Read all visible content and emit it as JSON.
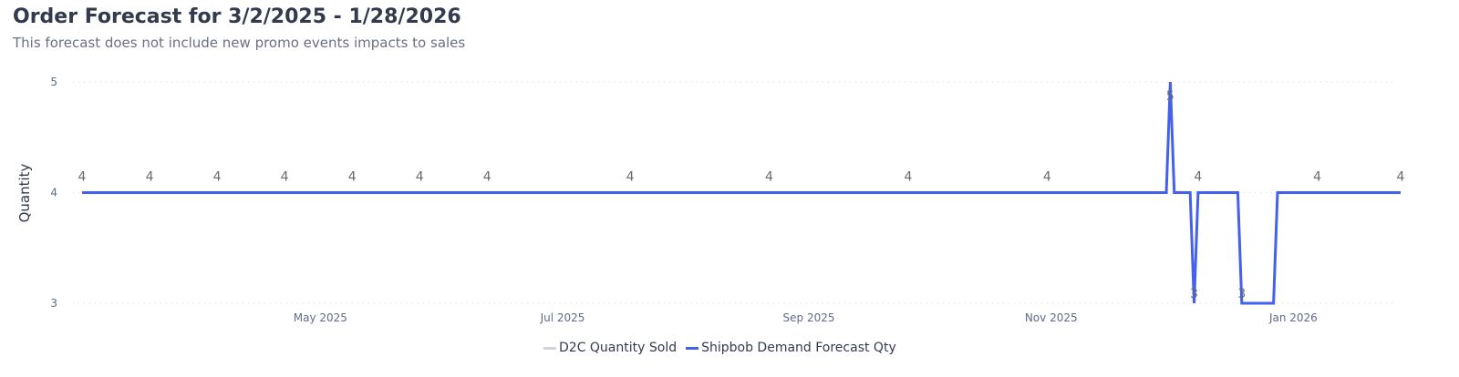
{
  "title": "Order Forecast for 3/2/2025 - 1/28/2026",
  "subtitle": "This forecast does not include new promo events impacts to sales",
  "chart_data": {
    "type": "line",
    "title": "Order Forecast for 3/2/2025 - 1/28/2026",
    "subtitle": "This forecast does not include new promo events impacts to sales",
    "ylabel": "Quantity",
    "xlabel": "",
    "xlim": [
      "2025-03-02",
      "2026-01-28"
    ],
    "ylim": [
      3,
      5
    ],
    "yticks": [
      3,
      4,
      5
    ],
    "xticks": [
      {
        "date": "2025-05-01",
        "label": "May 2025"
      },
      {
        "date": "2025-07-01",
        "label": "Jul 2025"
      },
      {
        "date": "2025-09-01",
        "label": "Sep 2025"
      },
      {
        "date": "2025-11-01",
        "label": "Nov 2025"
      },
      {
        "date": "2026-01-01",
        "label": "Jan 2026"
      }
    ],
    "grid": "horizontal dotted",
    "legend_position": "bottom",
    "series": [
      {
        "name": "D2C Quantity Sold",
        "color": "#d0d3d8",
        "points": []
      },
      {
        "name": "Shipbob Demand Forecast Qty",
        "color": "#4361ee",
        "points": [
          {
            "x": "2025-03-02",
            "y": 4
          },
          {
            "x": "2025-11-30",
            "y": 4
          },
          {
            "x": "2025-12-01",
            "y": 5
          },
          {
            "x": "2025-12-02",
            "y": 4
          },
          {
            "x": "2025-12-06",
            "y": 4
          },
          {
            "x": "2025-12-07",
            "y": 3
          },
          {
            "x": "2025-12-08",
            "y": 4
          },
          {
            "x": "2025-12-18",
            "y": 4
          },
          {
            "x": "2025-12-19",
            "y": 3
          },
          {
            "x": "2025-12-27",
            "y": 3
          },
          {
            "x": "2025-12-28",
            "y": 4
          },
          {
            "x": "2026-01-28",
            "y": 4
          }
        ]
      }
    ],
    "data_labels": [
      {
        "x": "2025-03-02",
        "y": 4
      },
      {
        "x": "2025-03-19",
        "y": 4
      },
      {
        "x": "2025-04-05",
        "y": 4
      },
      {
        "x": "2025-04-22",
        "y": 4
      },
      {
        "x": "2025-05-09",
        "y": 4
      },
      {
        "x": "2025-05-26",
        "y": 4
      },
      {
        "x": "2025-06-12",
        "y": 4
      },
      {
        "x": "2025-07-18",
        "y": 4
      },
      {
        "x": "2025-08-22",
        "y": 4
      },
      {
        "x": "2025-09-26",
        "y": 4
      },
      {
        "x": "2025-10-31",
        "y": 4
      },
      {
        "x": "2025-12-01",
        "y": 5
      },
      {
        "x": "2025-12-07",
        "y": 3
      },
      {
        "x": "2025-12-08",
        "y": 4
      },
      {
        "x": "2025-12-19",
        "y": 3
      },
      {
        "x": "2026-01-07",
        "y": 4
      },
      {
        "x": "2026-01-28",
        "y": 4
      }
    ]
  }
}
